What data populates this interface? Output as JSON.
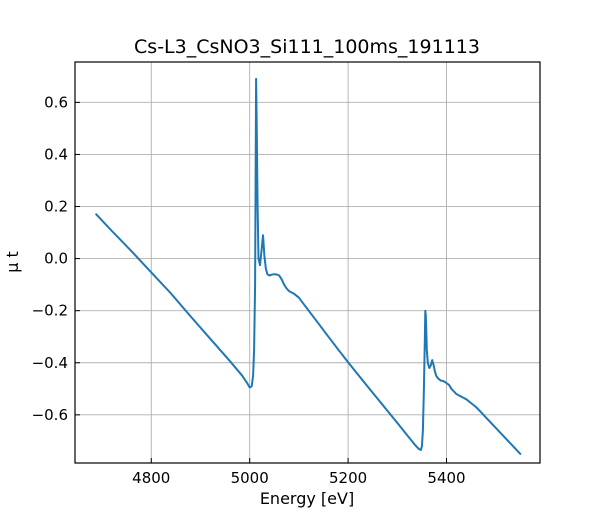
{
  "chart_data": {
    "type": "line",
    "title": "Cs-L3_CsNO3_Si111_100ms_191113",
    "xlabel": "Energy [eV]",
    "ylabel": "μ t",
    "xlim": [
      4645,
      5590
    ],
    "ylim": [
      -0.785,
      0.755
    ],
    "xticks": [
      4800,
      5000,
      5200,
      5400
    ],
    "xtick_labels": [
      "4800",
      "5000",
      "5200",
      "5400"
    ],
    "yticks": [
      -0.6,
      -0.4,
      -0.2,
      0.0,
      0.2,
      0.4,
      0.6
    ],
    "ytick_labels": [
      "−0.6",
      "−0.4",
      "−0.2",
      "0.0",
      "0.2",
      "0.4",
      "0.6"
    ],
    "grid": true,
    "series": [
      {
        "name": "Cs-L3 CsNO3",
        "color": "#1f77b4",
        "x": [
          4688,
          4720,
          4760,
          4800,
          4840,
          4880,
          4920,
          4960,
          4985,
          4995,
          5000,
          5004,
          5007,
          5009,
          5011,
          5012,
          5013,
          5014,
          5016,
          5018,
          5021,
          5024,
          5027,
          5030,
          5033,
          5036,
          5040,
          5045,
          5050,
          5055,
          5060,
          5065,
          5070,
          5075,
          5080,
          5090,
          5100,
          5110,
          5120,
          5140,
          5160,
          5180,
          5200,
          5220,
          5240,
          5260,
          5280,
          5300,
          5320,
          5335,
          5343,
          5348,
          5350,
          5352,
          5354,
          5356,
          5357,
          5358,
          5359,
          5360,
          5362,
          5365,
          5368,
          5371,
          5374,
          5376,
          5379,
          5383,
          5388,
          5393,
          5398,
          5405,
          5410,
          5415,
          5420,
          5430,
          5440,
          5450,
          5460,
          5470,
          5480,
          5500,
          5520,
          5540,
          5550
        ],
        "y": [
          0.17,
          0.106,
          0.028,
          -0.053,
          -0.134,
          -0.222,
          -0.308,
          -0.394,
          -0.45,
          -0.478,
          -0.495,
          -0.49,
          -0.45,
          -0.35,
          -0.1,
          0.3,
          0.69,
          0.55,
          0.2,
          0.0,
          -0.025,
          0.03,
          0.09,
          0.01,
          -0.04,
          -0.06,
          -0.065,
          -0.062,
          -0.06,
          -0.061,
          -0.065,
          -0.08,
          -0.1,
          -0.115,
          -0.125,
          -0.135,
          -0.15,
          -0.175,
          -0.2,
          -0.25,
          -0.3,
          -0.35,
          -0.398,
          -0.445,
          -0.492,
          -0.538,
          -0.585,
          -0.631,
          -0.678,
          -0.713,
          -0.73,
          -0.735,
          -0.72,
          -0.66,
          -0.5,
          -0.3,
          -0.2,
          -0.22,
          -0.28,
          -0.35,
          -0.4,
          -0.42,
          -0.41,
          -0.39,
          -0.41,
          -0.43,
          -0.45,
          -0.46,
          -0.468,
          -0.47,
          -0.475,
          -0.485,
          -0.5,
          -0.51,
          -0.52,
          -0.53,
          -0.54,
          -0.555,
          -0.57,
          -0.59,
          -0.61,
          -0.65,
          -0.69,
          -0.73,
          -0.75
        ]
      }
    ]
  }
}
